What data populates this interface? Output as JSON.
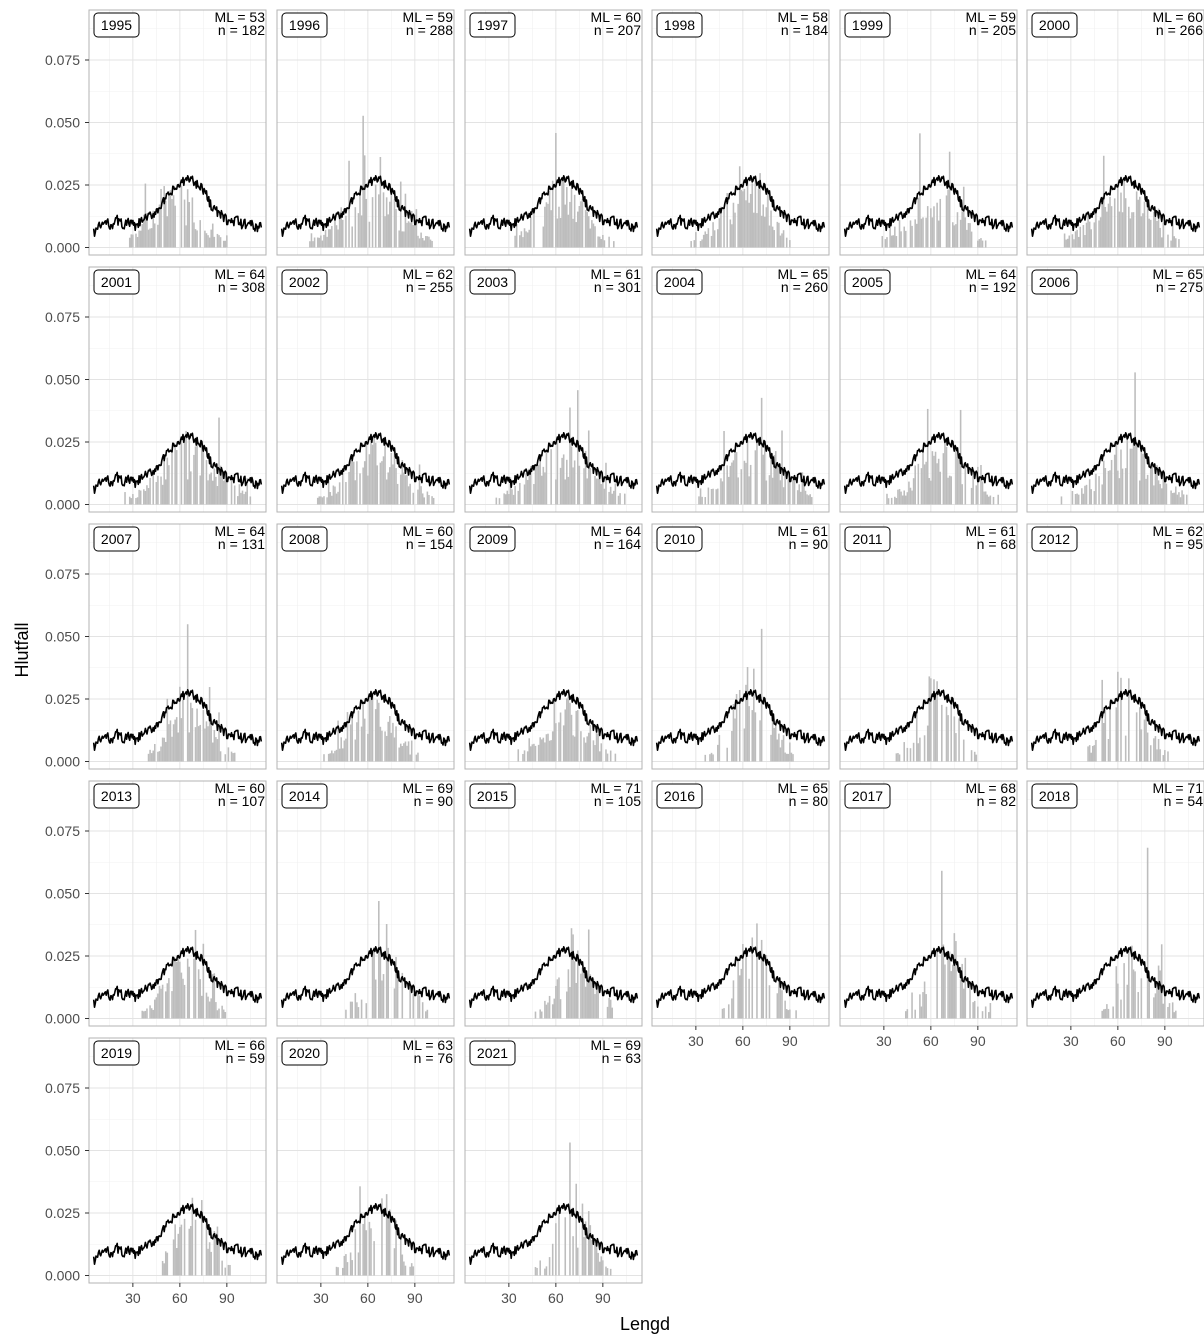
{
  "chart_data": {
    "type": "bar",
    "xlabel": "Lengd",
    "ylabel": "Hlutfall",
    "xlim": [
      2,
      115
    ],
    "ylim": [
      -0.003,
      0.095
    ],
    "x_ticks": [
      30,
      60,
      90
    ],
    "y_ticks": [
      0.0,
      0.025,
      0.05,
      0.075
    ],
    "y_tick_labels": [
      "0.000",
      "0.025",
      "0.050",
      "0.075"
    ],
    "grid": true,
    "panels": [
      {
        "year": "1995",
        "ml_label": "ML = 53",
        "n_label": "n = 182",
        "ml": 53,
        "n": 182
      },
      {
        "year": "1996",
        "ml_label": "ML = 59",
        "n_label": "n = 288",
        "ml": 59,
        "n": 288
      },
      {
        "year": "1997",
        "ml_label": "ML = 60",
        "n_label": "n = 207",
        "ml": 60,
        "n": 207
      },
      {
        "year": "1998",
        "ml_label": "ML = 58",
        "n_label": "n = 184",
        "ml": 58,
        "n": 184
      },
      {
        "year": "1999",
        "ml_label": "ML = 59",
        "n_label": "n = 205",
        "ml": 59,
        "n": 205
      },
      {
        "year": "2000",
        "ml_label": "ML = 60",
        "n_label": "n = 266",
        "ml": 60,
        "n": 266
      },
      {
        "year": "2001",
        "ml_label": "ML = 64",
        "n_label": "n = 308",
        "ml": 64,
        "n": 308
      },
      {
        "year": "2002",
        "ml_label": "ML = 62",
        "n_label": "n = 255",
        "ml": 62,
        "n": 255
      },
      {
        "year": "2003",
        "ml_label": "ML = 61",
        "n_label": "n = 301",
        "ml": 61,
        "n": 301
      },
      {
        "year": "2004",
        "ml_label": "ML = 65",
        "n_label": "n = 260",
        "ml": 65,
        "n": 260
      },
      {
        "year": "2005",
        "ml_label": "ML = 64",
        "n_label": "n = 192",
        "ml": 64,
        "n": 192
      },
      {
        "year": "2006",
        "ml_label": "ML = 65",
        "n_label": "n = 275",
        "ml": 65,
        "n": 275
      },
      {
        "year": "2007",
        "ml_label": "ML = 64",
        "n_label": "n = 131",
        "ml": 64,
        "n": 131
      },
      {
        "year": "2008",
        "ml_label": "ML = 60",
        "n_label": "n = 154",
        "ml": 60,
        "n": 154
      },
      {
        "year": "2009",
        "ml_label": "ML = 64",
        "n_label": "n = 164",
        "ml": 64,
        "n": 164
      },
      {
        "year": "2010",
        "ml_label": "ML = 61",
        "n_label": "n = 90",
        "ml": 61,
        "n": 90
      },
      {
        "year": "2011",
        "ml_label": "ML = 61",
        "n_label": "n = 68",
        "ml": 61,
        "n": 68
      },
      {
        "year": "2012",
        "ml_label": "ML = 62",
        "n_label": "n = 95",
        "ml": 62,
        "n": 95
      },
      {
        "year": "2013",
        "ml_label": "ML = 60",
        "n_label": "n = 107",
        "ml": 60,
        "n": 107
      },
      {
        "year": "2014",
        "ml_label": "ML = 69",
        "n_label": "n = 90",
        "ml": 69,
        "n": 90
      },
      {
        "year": "2015",
        "ml_label": "ML = 71",
        "n_label": "n = 105",
        "ml": 71,
        "n": 105
      },
      {
        "year": "2016",
        "ml_label": "ML = 65",
        "n_label": "n = 80",
        "ml": 65,
        "n": 80
      },
      {
        "year": "2017",
        "ml_label": "ML = 68",
        "n_label": "n = 82",
        "ml": 68,
        "n": 82
      },
      {
        "year": "2018",
        "ml_label": "ML = 71",
        "n_label": "n = 54",
        "ml": 71,
        "n": 54
      },
      {
        "year": "2019",
        "ml_label": "ML = 66",
        "n_label": "n = 59",
        "ml": 66,
        "n": 59
      },
      {
        "year": "2020",
        "ml_label": "ML = 63",
        "n_label": "n = 76",
        "ml": 63,
        "n": 76
      },
      {
        "year": "2021",
        "ml_label": "ML = 69",
        "n_label": "n = 63",
        "ml": 69,
        "n": 63
      }
    ],
    "reference_line": {
      "description_x": [
        5,
        8,
        12,
        16,
        20,
        24,
        28,
        32,
        36,
        40,
        44,
        48,
        52,
        56,
        60,
        64,
        66,
        68,
        70,
        72,
        76,
        80,
        84,
        88,
        92,
        96,
        100,
        104,
        108,
        112
      ],
      "y": [
        0.006,
        0.008,
        0.01,
        0.009,
        0.011,
        0.009,
        0.01,
        0.008,
        0.011,
        0.012,
        0.014,
        0.017,
        0.02,
        0.023,
        0.025,
        0.027,
        0.028,
        0.027,
        0.025,
        0.026,
        0.022,
        0.017,
        0.014,
        0.012,
        0.01,
        0.011,
        0.009,
        0.01,
        0.008,
        0.009
      ]
    },
    "bars_color": "#bdbdbd",
    "line_color": "#000000"
  }
}
